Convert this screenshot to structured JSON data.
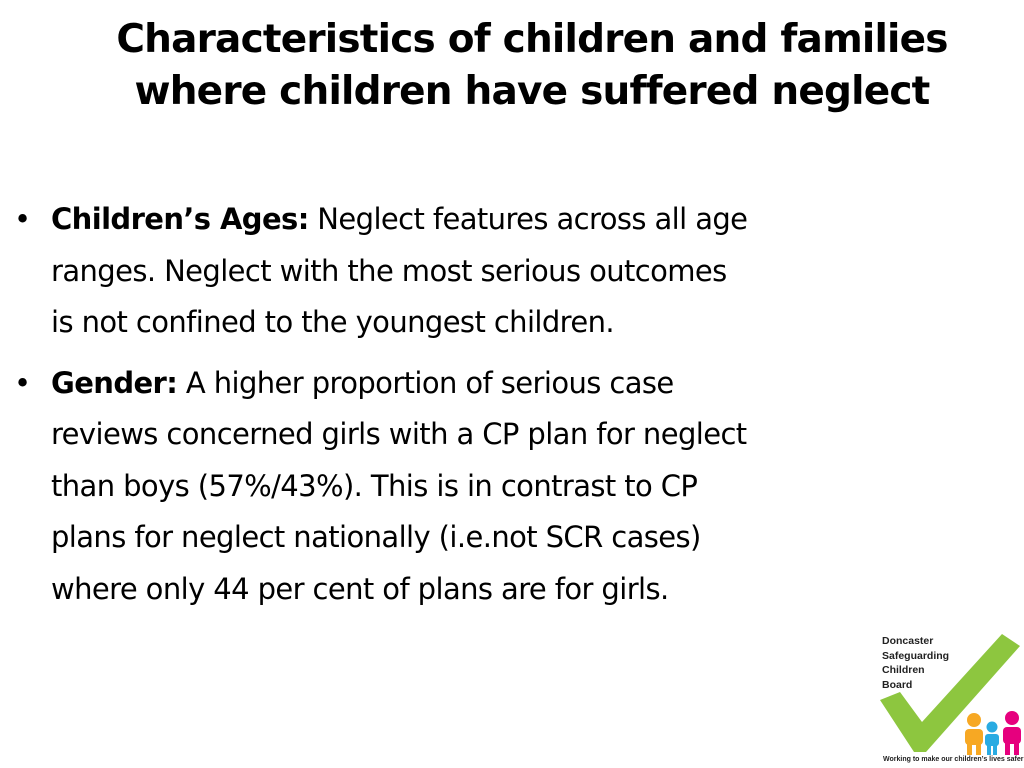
{
  "slide": {
    "title_lines": [
      "Characteristics of children and families",
      "where children have suffered neglect"
    ],
    "bullets": [
      {
        "label": "Children’s Ages:",
        "lines": [
          " Neglect features across all age",
          "ranges. Neglect with the most serious outcomes",
          "is not confined to the youngest children."
        ]
      },
      {
        "label": "Gender:",
        "lines": [
          " A higher proportion of serious case",
          "reviews concerned girls with a CP plan for neglect",
          "than boys (57%/43%). This is in contrast to CP",
          "plans for neglect nationally (i.e.not SCR cases)",
          "where only 44 per cent of plans are for girls."
        ]
      }
    ],
    "bullet_symbol": "•"
  },
  "logo": {
    "name_lines": [
      "Doncaster",
      "Safeguarding",
      "Children",
      "Board"
    ],
    "tagline": "Working to make our children’s lives safer",
    "colors": {
      "tick": "#8dc63f",
      "figure_1": "#f7a823",
      "figure_2": "#29abe2",
      "figure_3": "#e6007e"
    },
    "icon": "check-mark-with-family-figures"
  }
}
